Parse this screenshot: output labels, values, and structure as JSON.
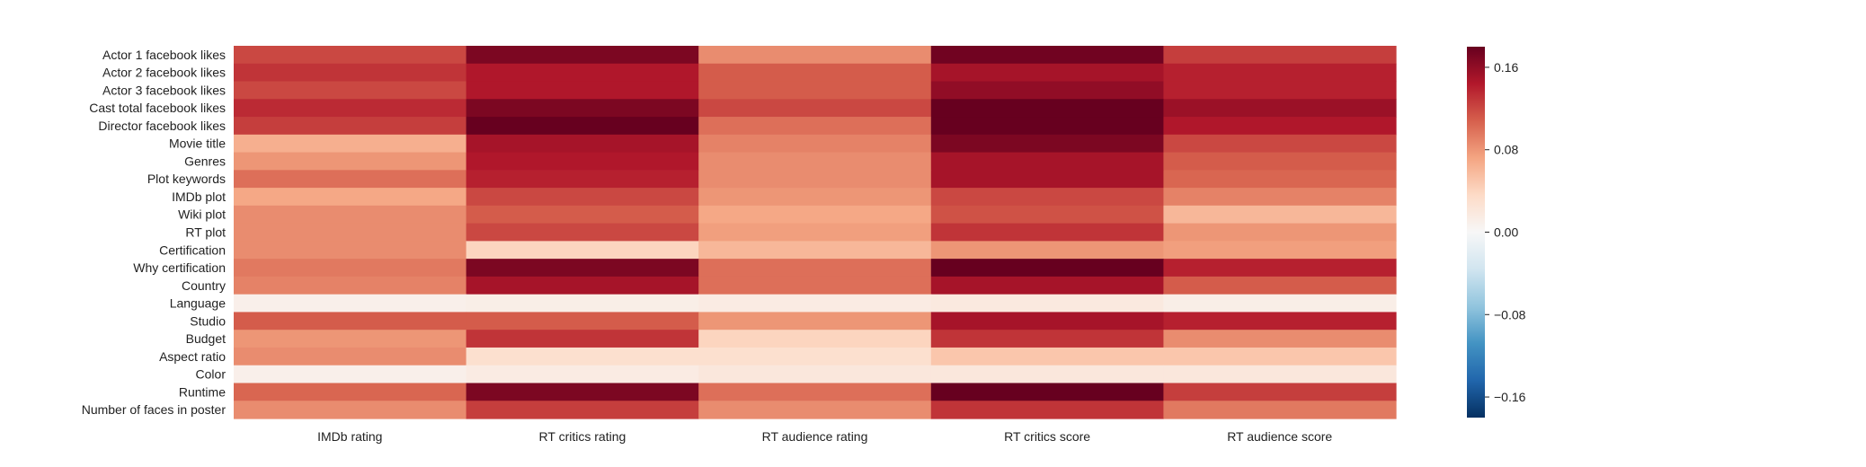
{
  "chart_data": {
    "type": "heatmap",
    "rows": [
      "Actor 1 facebook likes",
      "Actor 2 facebook likes",
      "Actor 3 facebook likes",
      "Cast total facebook likes",
      "Director facebook likes",
      "Movie title",
      "Genres",
      "Plot keywords",
      "IMDb plot",
      "Wiki plot",
      "RT plot",
      "Certification",
      "Why certification",
      "Country",
      "Language",
      "Studio",
      "Budget",
      "Aspect ratio",
      "Color",
      "Runtime",
      "Number of faces in poster"
    ],
    "columns": [
      "IMDb rating",
      "RT critics rating",
      "RT audience rating",
      "RT critics score",
      "RT audience score"
    ],
    "values": [
      [
        0.12,
        0.17,
        0.085,
        0.175,
        0.125
      ],
      [
        0.13,
        0.145,
        0.11,
        0.15,
        0.14
      ],
      [
        0.12,
        0.145,
        0.11,
        0.16,
        0.14
      ],
      [
        0.135,
        0.17,
        0.12,
        0.18,
        0.155
      ],
      [
        0.125,
        0.185,
        0.1,
        0.19,
        0.145
      ],
      [
        0.065,
        0.15,
        0.09,
        0.17,
        0.12
      ],
      [
        0.08,
        0.145,
        0.085,
        0.15,
        0.11
      ],
      [
        0.1,
        0.14,
        0.085,
        0.15,
        0.105
      ],
      [
        0.07,
        0.12,
        0.08,
        0.12,
        0.09
      ],
      [
        0.085,
        0.11,
        0.07,
        0.115,
        0.06
      ],
      [
        0.085,
        0.12,
        0.075,
        0.13,
        0.08
      ],
      [
        0.085,
        0.04,
        0.06,
        0.08,
        0.075
      ],
      [
        0.095,
        0.17,
        0.1,
        0.185,
        0.14
      ],
      [
        0.09,
        0.15,
        0.1,
        0.15,
        0.11
      ],
      [
        0.01,
        0.012,
        0.015,
        0.018,
        0.012
      ],
      [
        0.11,
        0.11,
        0.08,
        0.15,
        0.14
      ],
      [
        0.08,
        0.13,
        0.04,
        0.13,
        0.085
      ],
      [
        0.085,
        0.03,
        0.03,
        0.05,
        0.05
      ],
      [
        0.01,
        0.015,
        0.02,
        0.02,
        0.02
      ],
      [
        0.105,
        0.17,
        0.1,
        0.18,
        0.125
      ],
      [
        0.085,
        0.125,
        0.085,
        0.13,
        0.095
      ]
    ],
    "vmin": -0.18,
    "vmax": 0.18,
    "colormap": "RdBu_r",
    "colorbar": {
      "ticks": [
        -0.16,
        -0.08,
        0.0,
        0.08,
        0.16
      ],
      "tick_labels": [
        "−0.16",
        "−0.08",
        "0.00",
        "0.08",
        "0.16"
      ],
      "placement": "right"
    },
    "title": "",
    "xlabel": "",
    "ylabel": "",
    "grid": false
  }
}
